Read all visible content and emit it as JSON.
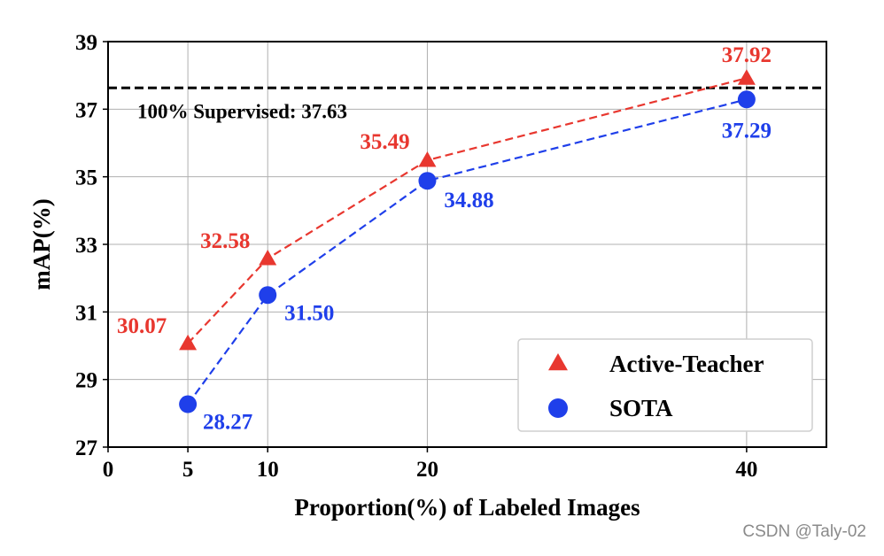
{
  "chart_data": {
    "type": "line",
    "x": [
      5,
      10,
      20,
      40
    ],
    "xlabel": "Proportion(%) of Labeled Images",
    "ylabel": "mAP(%)",
    "xlim": [
      0,
      45
    ],
    "ylim": [
      27,
      39
    ],
    "xticks": [
      0,
      5,
      10,
      20,
      40
    ],
    "yticks": [
      27,
      29,
      31,
      33,
      35,
      37,
      39
    ],
    "grid": true,
    "legend_position": "bottom-right",
    "series": [
      {
        "name": "Active-Teacher",
        "values": [
          30.07,
          32.58,
          35.49,
          37.92
        ],
        "labels": [
          "30.07",
          "32.58",
          "35.49",
          "37.92"
        ],
        "color": "#e8372f",
        "marker": "triangle",
        "line_style": "dashed"
      },
      {
        "name": "SOTA",
        "values": [
          28.27,
          31.5,
          34.88,
          37.29
        ],
        "labels": [
          "28.27",
          "31.50",
          "34.88",
          "37.29"
        ],
        "color": "#1f3fea",
        "marker": "circle",
        "line_style": "dashed"
      }
    ],
    "reference_line": {
      "value": 37.63,
      "label": "100% Supervised: 37.63",
      "color": "#000000",
      "line_style": "dashed"
    }
  },
  "watermark": "CSDN @Taly-02"
}
